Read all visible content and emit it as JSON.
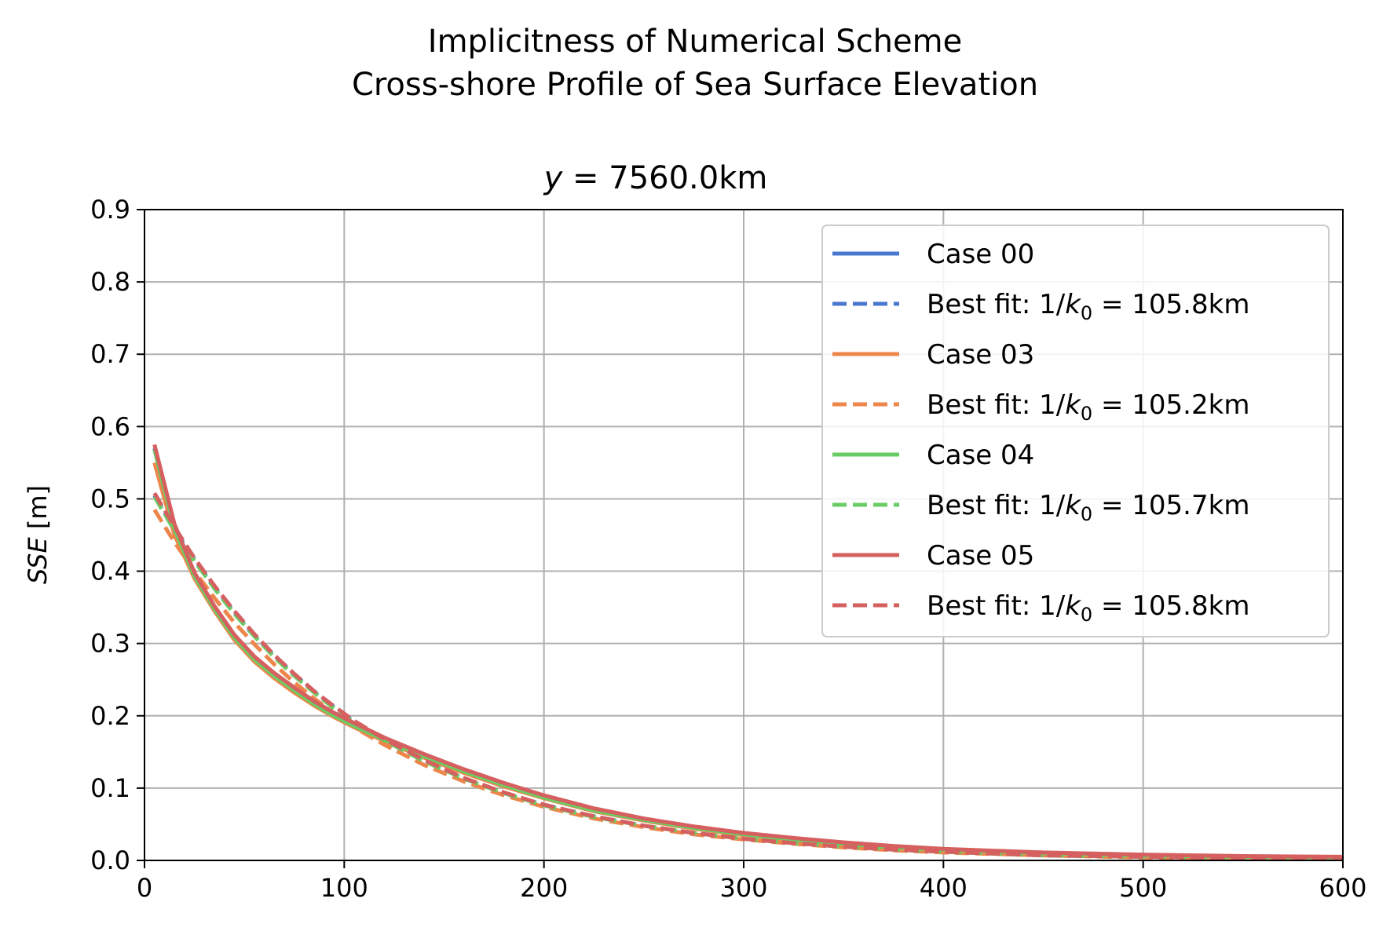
{
  "figure": {
    "suptitle_line1": "Implicitness of Numerical Scheme",
    "suptitle_line2": "Cross-shore Profile of Sea Surface Elevation"
  },
  "chart_data": {
    "type": "line",
    "title": "y = 7560.0km",
    "xlabel": "",
    "ylabel": "SSE [m]",
    "xlim": [
      0,
      600
    ],
    "ylim": [
      0,
      0.9
    ],
    "xticks": [
      "0",
      "100",
      "200",
      "300",
      "400",
      "500",
      "600"
    ],
    "yticks": [
      "0.0",
      "0.1",
      "0.2",
      "0.3",
      "0.4",
      "0.5",
      "0.6",
      "0.7",
      "0.8",
      "0.9"
    ],
    "grid": true,
    "legend_position": "upper right",
    "x": [
      5,
      15,
      25,
      35,
      45,
      55,
      65,
      75,
      85,
      95,
      105,
      120,
      140,
      160,
      180,
      200,
      225,
      250,
      275,
      300,
      325,
      350,
      375,
      400,
      450,
      500,
      550,
      600
    ],
    "series": [
      {
        "name": "Case 00",
        "style": "solid",
        "color": "#4878cf",
        "values": [
          0.57,
          0.46,
          0.395,
          0.35,
          0.31,
          0.28,
          0.257,
          0.237,
          0.218,
          0.202,
          0.188,
          0.168,
          0.145,
          0.124,
          0.105,
          0.088,
          0.07,
          0.056,
          0.045,
          0.036,
          0.029,
          0.023,
          0.018,
          0.015,
          0.01,
          0.007,
          0.005,
          0.004
        ]
      },
      {
        "name": "Best fit: 1/k0 = 105.8km",
        "style": "dashed",
        "color": "#4878cf",
        "values": [
          0.505,
          0.458,
          0.416,
          0.378,
          0.343,
          0.311,
          0.283,
          0.257,
          0.233,
          0.212,
          0.192,
          0.167,
          0.138,
          0.113,
          0.093,
          0.077,
          0.061,
          0.048,
          0.038,
          0.03,
          0.024,
          0.019,
          0.015,
          0.012,
          0.007,
          0.005,
          0.003,
          0.002
        ]
      },
      {
        "name": "Case 03",
        "style": "solid",
        "color": "#ee854a",
        "values": [
          0.55,
          0.45,
          0.39,
          0.345,
          0.305,
          0.275,
          0.252,
          0.232,
          0.214,
          0.198,
          0.184,
          0.165,
          0.142,
          0.121,
          0.102,
          0.086,
          0.068,
          0.055,
          0.044,
          0.035,
          0.028,
          0.022,
          0.018,
          0.014,
          0.009,
          0.006,
          0.004,
          0.003
        ]
      },
      {
        "name": "Best fit: 1/k0 = 105.2km",
        "style": "dashed",
        "color": "#ee854a",
        "values": [
          0.485,
          0.44,
          0.4,
          0.363,
          0.329,
          0.299,
          0.271,
          0.246,
          0.224,
          0.203,
          0.184,
          0.16,
          0.132,
          0.109,
          0.09,
          0.074,
          0.058,
          0.046,
          0.036,
          0.029,
          0.023,
          0.018,
          0.014,
          0.011,
          0.007,
          0.004,
          0.003,
          0.002
        ]
      },
      {
        "name": "Case 04",
        "style": "solid",
        "color": "#6acc64",
        "values": [
          0.568,
          0.458,
          0.393,
          0.348,
          0.308,
          0.278,
          0.255,
          0.235,
          0.216,
          0.2,
          0.186,
          0.167,
          0.144,
          0.123,
          0.104,
          0.087,
          0.069,
          0.056,
          0.045,
          0.036,
          0.029,
          0.023,
          0.018,
          0.015,
          0.01,
          0.007,
          0.005,
          0.004
        ]
      },
      {
        "name": "Best fit: 1/k0 = 105.7km",
        "style": "dashed",
        "color": "#6acc64",
        "values": [
          0.503,
          0.456,
          0.414,
          0.376,
          0.341,
          0.31,
          0.281,
          0.255,
          0.232,
          0.21,
          0.191,
          0.166,
          0.137,
          0.113,
          0.093,
          0.076,
          0.06,
          0.048,
          0.038,
          0.03,
          0.024,
          0.019,
          0.015,
          0.012,
          0.007,
          0.005,
          0.003,
          0.002
        ]
      },
      {
        "name": "Case 05",
        "style": "solid",
        "color": "#d65f5f",
        "values": [
          0.575,
          0.465,
          0.398,
          0.352,
          0.312,
          0.282,
          0.259,
          0.239,
          0.22,
          0.204,
          0.19,
          0.17,
          0.147,
          0.126,
          0.107,
          0.09,
          0.072,
          0.058,
          0.047,
          0.038,
          0.031,
          0.025,
          0.02,
          0.016,
          0.011,
          0.008,
          0.006,
          0.005
        ]
      },
      {
        "name": "Best fit: 1/k0 = 105.8km",
        "style": "dashed",
        "color": "#d65f5f",
        "values": [
          0.508,
          0.461,
          0.418,
          0.38,
          0.345,
          0.313,
          0.284,
          0.258,
          0.234,
          0.213,
          0.193,
          0.168,
          0.139,
          0.114,
          0.094,
          0.077,
          0.061,
          0.048,
          0.038,
          0.03,
          0.024,
          0.019,
          0.015,
          0.012,
          0.007,
          0.005,
          0.003,
          0.002
        ]
      }
    ],
    "legend": [
      {
        "kind": "case",
        "text": "Case 00"
      },
      {
        "kind": "fit",
        "prefix": "Best fit: 1/",
        "k": "k",
        "sub": "0",
        "eq": " = 105.8km"
      },
      {
        "kind": "case",
        "text": "Case 03"
      },
      {
        "kind": "fit",
        "prefix": "Best fit: 1/",
        "k": "k",
        "sub": "0",
        "eq": " = 105.2km"
      },
      {
        "kind": "case",
        "text": "Case 04"
      },
      {
        "kind": "fit",
        "prefix": "Best fit: 1/",
        "k": "k",
        "sub": "0",
        "eq": " = 105.7km"
      },
      {
        "kind": "case",
        "text": "Case 05"
      },
      {
        "kind": "fit",
        "prefix": "Best fit: 1/",
        "k": "k",
        "sub": "0",
        "eq": " = 105.8km"
      }
    ],
    "title_parts": {
      "var": "y",
      "rest": " = 7560.0km"
    },
    "ylabel_parts": {
      "var": "SSE",
      "rest": " [m]"
    }
  }
}
